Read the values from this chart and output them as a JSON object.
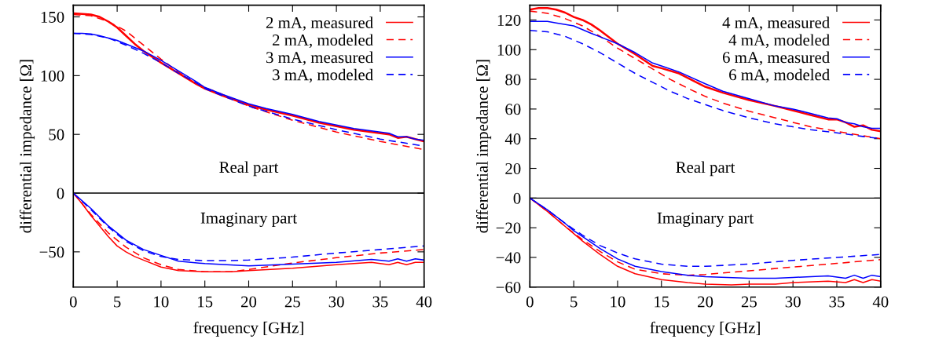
{
  "chart_data": [
    {
      "type": "line",
      "xlabel": "frequency [GHz]",
      "ylabel": "differential impedance [Ω]",
      "xlim": [
        0,
        40
      ],
      "ylim": [
        -80,
        160
      ],
      "xticks": [
        0,
        5,
        10,
        15,
        20,
        25,
        30,
        35,
        40
      ],
      "yticks": [
        {
          "value": -50,
          "label": "−50"
        },
        0,
        50,
        100,
        150
      ],
      "legend": "top right",
      "grid": false,
      "marker": "none",
      "annotations": [
        "Real part",
        "Imaginary part"
      ],
      "ref_lines": [
        {
          "axis": "y",
          "value": 0,
          "color": "#000000"
        }
      ],
      "series": [
        {
          "name": "2 mA, measured",
          "color": "#ff0000",
          "line_style": "solid",
          "x": [
            0,
            1,
            2,
            3,
            4,
            5,
            6,
            7,
            8,
            9,
            10,
            12,
            14,
            15,
            17,
            20,
            22,
            25,
            28,
            30,
            32,
            34,
            35,
            36,
            37,
            38,
            39,
            40
          ],
          "values": [
            153,
            152.5,
            152,
            150,
            146,
            141,
            134,
            127,
            121,
            116,
            111,
            102,
            93,
            89,
            83,
            75,
            71,
            66,
            60,
            57,
            54,
            52,
            51,
            50,
            47,
            48,
            46,
            44
          ]
        },
        {
          "name": "2 mA, modeled",
          "color": "#ff0000",
          "line_style": "dashed",
          "x": [
            0,
            2,
            4,
            6,
            8,
            10,
            12,
            14,
            15,
            17,
            20,
            25,
            30,
            35,
            40
          ],
          "values": [
            152,
            151,
            146,
            138,
            126,
            114,
            103,
            93,
            90,
            84,
            74,
            62,
            52,
            44,
            37
          ]
        },
        {
          "name": "3 mA, measured",
          "color": "#0000ff",
          "line_style": "solid",
          "x": [
            0,
            1,
            2,
            3,
            4,
            5,
            6,
            8,
            10,
            12,
            14,
            15,
            17,
            20,
            22,
            25,
            28,
            30,
            32,
            34,
            35,
            36,
            37,
            38,
            39,
            40
          ],
          "values": [
            136,
            136,
            135.5,
            134,
            132,
            130,
            127,
            121,
            113,
            104,
            95,
            90,
            84,
            76,
            72,
            67,
            61,
            58,
            55,
            53,
            52,
            51,
            48,
            48,
            46,
            45
          ]
        },
        {
          "name": "3 mA, modeled",
          "color": "#0000ff",
          "line_style": "dashed",
          "x": [
            0,
            2,
            4,
            6,
            8,
            10,
            12,
            14,
            15,
            17,
            20,
            25,
            30,
            35,
            40
          ],
          "values": [
            136,
            135,
            132,
            126,
            119,
            111,
            102,
            94,
            89,
            83,
            74,
            63,
            54,
            46,
            40
          ]
        },
        {
          "color": "#ff0000",
          "line_style": "solid",
          "x": [
            0,
            1,
            2,
            3,
            4,
            5,
            6,
            7,
            8,
            10,
            12,
            15,
            18,
            20,
            25,
            30,
            34,
            36,
            37,
            38,
            39,
            40
          ],
          "values": [
            0,
            -9,
            -19,
            -28,
            -37,
            -45,
            -50,
            -54,
            -57,
            -63,
            -66,
            -67,
            -67,
            -66,
            -64,
            -61,
            -59,
            -61,
            -59,
            -61,
            -59,
            -59
          ]
        },
        {
          "color": "#ff0000",
          "line_style": "dashed",
          "x": [
            0,
            2,
            4,
            6,
            8,
            10,
            12,
            15,
            18,
            20,
            25,
            30,
            35,
            40
          ],
          "values": [
            0,
            -18,
            -34,
            -46,
            -55,
            -61,
            -65,
            -67,
            -67,
            -65,
            -59.5,
            -55,
            -51,
            -48
          ]
        },
        {
          "color": "#0000ff",
          "line_style": "solid",
          "x": [
            0,
            2,
            4,
            5,
            6,
            8,
            10,
            12,
            15,
            20,
            25,
            30,
            34,
            36,
            37,
            38,
            39,
            40
          ],
          "values": [
            0,
            -13,
            -28,
            -34,
            -40,
            -48,
            -53,
            -58,
            -60,
            -62,
            -60.5,
            -59,
            -56.5,
            -58,
            -56,
            -58,
            -56,
            -57
          ]
        },
        {
          "color": "#0000ff",
          "line_style": "dashed",
          "x": [
            0,
            2,
            4,
            6,
            8,
            10,
            12,
            15,
            18,
            20,
            25,
            30,
            35,
            40
          ],
          "values": [
            0,
            -14,
            -29,
            -41,
            -49,
            -54,
            -56.5,
            -57.5,
            -57.5,
            -57,
            -54.5,
            -51,
            -48,
            -45
          ]
        }
      ]
    },
    {
      "type": "line",
      "xlabel": "frequency [GHz]",
      "ylabel": "differential impedance [Ω]",
      "xlim": [
        0,
        40
      ],
      "ylim": [
        -60,
        130
      ],
      "xticks": [
        0,
        5,
        10,
        15,
        20,
        25,
        30,
        35,
        40
      ],
      "yticks": [
        {
          "value": -60,
          "label": "−60"
        },
        {
          "value": -40,
          "label": "−40"
        },
        {
          "value": -20,
          "label": "−20"
        },
        0,
        20,
        40,
        60,
        80,
        100,
        120
      ],
      "legend": "top right",
      "grid": false,
      "marker": "none",
      "annotations": [
        "Real part",
        "Imaginary part"
      ],
      "ref_lines": [
        {
          "axis": "y",
          "value": 0,
          "color": "#000000"
        }
      ],
      "series": [
        {
          "name": "4 mA, measured",
          "color": "#ff0000",
          "line_style": "solid",
          "x": [
            0,
            1,
            2,
            3,
            4,
            5,
            6,
            7,
            8,
            10,
            12,
            13.5,
            14,
            15,
            17,
            20,
            22,
            25,
            28,
            30,
            32,
            34,
            35,
            36,
            37,
            38,
            39,
            40
          ],
          "values": [
            127,
            128,
            128,
            127,
            125,
            122,
            120,
            117,
            113,
            104,
            97,
            91,
            89,
            87.5,
            84,
            75,
            71,
            66,
            62,
            59,
            56,
            53,
            53,
            51,
            48,
            49,
            46,
            45
          ]
        },
        {
          "name": "4 mA, modeled",
          "color": "#ff0000",
          "line_style": "dashed",
          "x": [
            0,
            2,
            4,
            6,
            8,
            10,
            12,
            14,
            16,
            18,
            20,
            22,
            25,
            28,
            30,
            32,
            35,
            38,
            40
          ],
          "values": [
            126,
            124.5,
            121,
            116,
            109,
            101,
            94,
            87,
            80,
            74,
            68.5,
            64,
            58.5,
            54,
            51,
            48,
            45,
            42,
            40
          ]
        },
        {
          "name": "6 mA, measured",
          "color": "#0000ff",
          "line_style": "solid",
          "x": [
            0,
            2,
            3,
            5,
            7,
            10,
            12,
            14,
            15,
            17,
            20,
            22,
            25,
            28,
            30,
            32,
            34,
            35,
            36,
            37,
            38,
            39,
            40
          ],
          "values": [
            119,
            119,
            118,
            116,
            111,
            104,
            98,
            91,
            89,
            85,
            77,
            72,
            67,
            62,
            60,
            57,
            54,
            53.5,
            51,
            50,
            48,
            47,
            47
          ]
        },
        {
          "name": "6 mA, modeled",
          "color": "#0000ff",
          "line_style": "dashed",
          "x": [
            0,
            2,
            4,
            6,
            8,
            10,
            12,
            14,
            16,
            18,
            20,
            22,
            25,
            28,
            30,
            32,
            35,
            38,
            40
          ],
          "values": [
            113,
            112,
            109,
            104,
            98,
            91,
            84,
            78,
            72,
            67,
            63,
            59,
            54,
            50,
            48,
            46,
            44,
            41.5,
            40
          ]
        },
        {
          "color": "#ff0000",
          "line_style": "solid",
          "x": [
            0,
            2,
            4,
            5,
            6,
            8,
            10,
            12,
            15,
            18,
            20,
            23,
            25,
            28,
            30,
            34,
            36,
            37,
            38,
            39,
            40
          ],
          "values": [
            0,
            -9,
            -19,
            -24,
            -29,
            -38,
            -46,
            -51,
            -55,
            -57,
            -58,
            -58.5,
            -58,
            -58,
            -57,
            -56,
            -57,
            -55,
            -57,
            -55,
            -56
          ]
        },
        {
          "color": "#ff0000",
          "line_style": "dashed",
          "x": [
            0,
            2,
            4,
            6,
            8,
            10,
            12,
            15,
            18,
            20,
            25,
            30,
            35,
            40
          ],
          "values": [
            0,
            -9,
            -19,
            -28,
            -36,
            -43,
            -48,
            -51,
            -52,
            -51.5,
            -49,
            -46.5,
            -44,
            -41.5
          ]
        },
        {
          "color": "#0000ff",
          "line_style": "solid",
          "x": [
            0,
            2,
            4,
            5,
            6,
            8,
            10,
            12,
            15,
            18,
            20,
            25,
            28,
            30,
            34,
            36,
            37,
            38,
            39,
            40
          ],
          "values": [
            0,
            -8,
            -17,
            -22,
            -26,
            -34,
            -41,
            -46,
            -49.5,
            -52,
            -53,
            -54,
            -54,
            -53.5,
            -52.5,
            -54,
            -52,
            -54,
            -52,
            -53
          ]
        },
        {
          "color": "#0000ff",
          "line_style": "dashed",
          "x": [
            0,
            2,
            4,
            6,
            8,
            10,
            12,
            15,
            18,
            20,
            25,
            30,
            35,
            40
          ],
          "values": [
            0,
            -8,
            -17,
            -25,
            -32,
            -37,
            -41,
            -44.5,
            -46,
            -46,
            -44.5,
            -42,
            -40,
            -38
          ]
        }
      ]
    }
  ]
}
